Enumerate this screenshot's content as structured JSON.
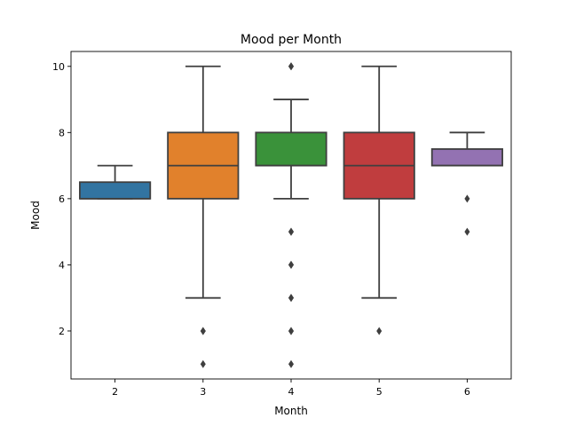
{
  "chart_data": {
    "type": "box",
    "title": "Mood per Month",
    "xlabel": "Month",
    "ylabel": "Mood",
    "categories": [
      "2",
      "3",
      "4",
      "5",
      "6"
    ],
    "yticks": [
      2,
      4,
      6,
      8,
      10
    ],
    "ylim": [
      0.55,
      10.45
    ],
    "grid": false,
    "series": [
      {
        "category": "2",
        "color": "#3274a1",
        "whisker_low": 6,
        "q1": 6,
        "median": 6,
        "q3": 6.5,
        "whisker_high": 7,
        "outliers": []
      },
      {
        "category": "3",
        "color": "#e1812c",
        "whisker_low": 3,
        "q1": 6,
        "median": 7,
        "q3": 8,
        "whisker_high": 10,
        "outliers": [
          2,
          2,
          1
        ]
      },
      {
        "category": "4",
        "color": "#3a923a",
        "whisker_low": 6,
        "q1": 7,
        "median": 7,
        "q3": 8,
        "whisker_high": 9,
        "outliers": [
          10,
          10,
          5,
          5,
          4,
          4,
          3,
          3,
          2,
          2,
          1
        ]
      },
      {
        "category": "5",
        "color": "#c03d3e",
        "whisker_low": 3,
        "q1": 6,
        "median": 7,
        "q3": 8,
        "whisker_high": 10,
        "outliers": [
          2
        ]
      },
      {
        "category": "6",
        "color": "#9372b2",
        "whisker_low": 7,
        "q1": 7,
        "median": 7,
        "q3": 7.5,
        "whisker_high": 8,
        "outliers": [
          6,
          5
        ]
      }
    ]
  }
}
